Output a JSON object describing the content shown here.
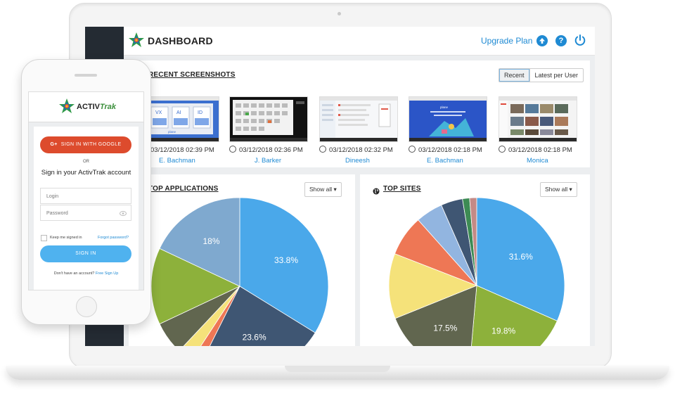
{
  "dashboard": {
    "title": "DASHBOARD",
    "upgrade_label": "Upgrade Plan",
    "icons": [
      "upload-icon",
      "help-icon",
      "power-icon"
    ]
  },
  "screenshots": {
    "title": "RECENT SCREENSHOTS",
    "toggle": [
      "Recent",
      "Latest per User"
    ],
    "items": [
      {
        "time": "03/12/2018 02:39 PM",
        "user": "E. Bachman"
      },
      {
        "time": "03/12/2018 02:36 PM",
        "user": "J. Barker"
      },
      {
        "time": "03/12/2018 02:32 PM",
        "user": "Dineesh"
      },
      {
        "time": "03/12/2018 02:18 PM",
        "user": "E. Bachman"
      },
      {
        "time": "03/12/2018 02:18 PM",
        "user": "Monica"
      }
    ],
    "thumb_text": {
      "vx": "VX",
      "ai": "AI",
      "id": "ID",
      "brand": "plane"
    }
  },
  "apps": {
    "title": "TOP APPLICATIONS",
    "dropdown": "Show all",
    "slices": [
      {
        "value": 33.8,
        "color": "#4aa8ea",
        "label": "33.8%"
      },
      {
        "value": 23.6,
        "color": "#3f5673",
        "label": "23.6%"
      },
      {
        "value": 1.8,
        "color": "#ee7755",
        "label": ""
      },
      {
        "value": 2.8,
        "color": "#f5e27a",
        "label": ""
      },
      {
        "value": 6.0,
        "color": "#61664f",
        "label": ""
      },
      {
        "value": 14.0,
        "color": "#8db13b",
        "label": ""
      },
      {
        "value": 18.0,
        "color": "#7fa9cf",
        "label": "18%"
      }
    ]
  },
  "sites": {
    "title": "TOP SITES",
    "dropdown": "Show all",
    "slices": [
      {
        "value": 31.6,
        "color": "#4aa8ea",
        "label": "31.6%"
      },
      {
        "value": 19.8,
        "color": "#8db13b",
        "label": "19.8%"
      },
      {
        "value": 17.5,
        "color": "#61664f",
        "label": "17.5%"
      },
      {
        "value": 12.0,
        "color": "#f5e27a",
        "label": ""
      },
      {
        "value": 7.5,
        "color": "#ee7755",
        "label": ""
      },
      {
        "value": 5.0,
        "color": "#92b5e0",
        "label": ""
      },
      {
        "value": 4.0,
        "color": "#3f5673",
        "label": ""
      },
      {
        "value": 1.3,
        "color": "#3d8b54",
        "label": ""
      },
      {
        "value": 1.3,
        "color": "#c48a86",
        "label": ""
      }
    ]
  },
  "phone": {
    "brand_main": "ACTIV",
    "brand_accent": "Trak",
    "google_button": "SIGN IN WITH GOOGLE",
    "google_glyph": "G+",
    "or_text": "OR",
    "signin_title": "Sign in your ActivTrak account",
    "login_placeholder": "Login",
    "password_placeholder": "Password",
    "keep_signed_in": "Keep me signed in",
    "forgot_password": "Forgot password?",
    "signin_button": "SIGN IN",
    "no_account": "Don't have an account?",
    "signup_link": "Free Sign Up"
  }
}
